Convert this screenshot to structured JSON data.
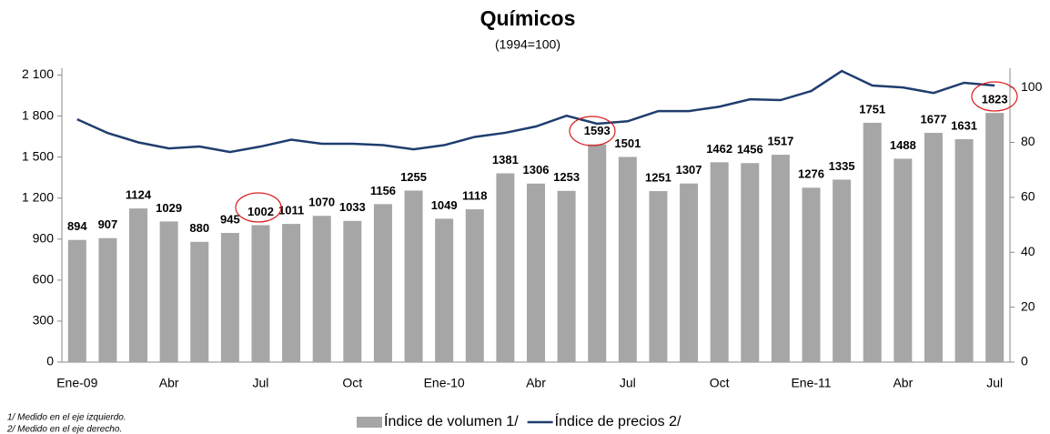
{
  "chart_data": {
    "type": "combo",
    "title": "Químicos",
    "subtitle": "(1994=100)",
    "categories": [
      "Ene-09",
      null,
      null,
      "Abr",
      null,
      null,
      "Jul",
      null,
      null,
      "Oct",
      null,
      null,
      "Ene-10",
      null,
      null,
      "Abr",
      null,
      null,
      "Jul",
      null,
      null,
      "Oct",
      null,
      null,
      "Ene-11",
      null,
      null,
      "Abr",
      null,
      null,
      "Jul"
    ],
    "series": [
      {
        "name": "Índice de volumen 1/",
        "type": "bar",
        "color": "#a6a6a6",
        "values": [
          894,
          907,
          1124,
          1029,
          880,
          945,
          1002,
          1011,
          1070,
          1033,
          1156,
          1255,
          1049,
          1118,
          1381,
          1306,
          1253,
          1593,
          1501,
          1251,
          1307,
          1462,
          1456,
          1517,
          1276,
          1335,
          1751,
          1488,
          1677,
          1631,
          1823
        ]
      },
      {
        "name": "Índice de precios 2/",
        "type": "line",
        "axis": "y2",
        "color": "#1f3d6e",
        "values": [
          88.4,
          83.4,
          80,
          77.8,
          78.5,
          76.5,
          78.5,
          81,
          79.5,
          79.5,
          79,
          77.5,
          79,
          82,
          83.5,
          85.8,
          89.7,
          86.8,
          87.7,
          91.4,
          91.4,
          93,
          95.7,
          95.4,
          98.7,
          106,
          100.7,
          100,
          98,
          101.7,
          100.7
        ]
      }
    ],
    "ylim": [
      0,
      2150
    ],
    "yticks": [
      0,
      300,
      600,
      900,
      {
        "value": 1200,
        "label": "1 200"
      },
      {
        "value": 1500,
        "label": "1 500"
      },
      {
        "value": 1800,
        "label": "1 800"
      },
      {
        "value": 2100,
        "label": "2 100"
      }
    ],
    "y2lim": [
      0,
      107
    ],
    "y2ticks": [
      0,
      20,
      40,
      60,
      80,
      100
    ],
    "legend": "bottom",
    "footnotes": [
      "1/ Medido en el eje izquierdo.",
      "2/ Medido en el eje derecho."
    ]
  }
}
